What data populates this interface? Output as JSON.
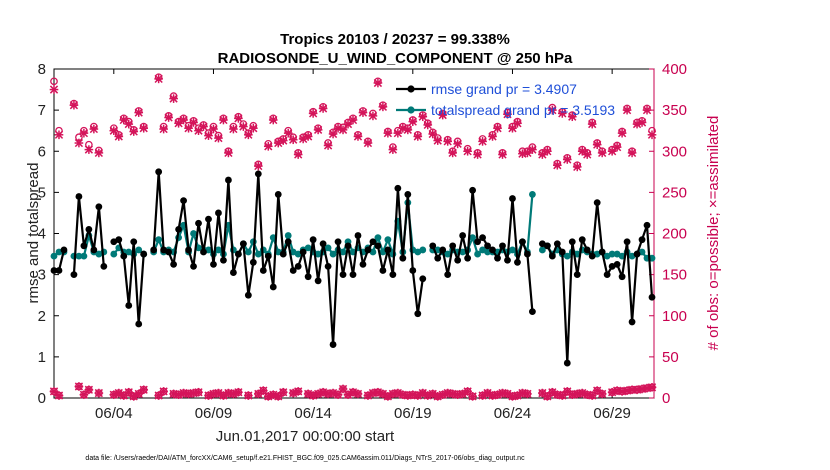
{
  "title_line1": "Tropics 20103 / 20237 = 99.338%",
  "title_line2": "RADIOSONDE_U_WIND_COMPONENT @ 250 hPa",
  "footer": "data file: /Users/raeder/DAI/ATM_forcXX/CAM6_setup/f.e21.FHIST_BGC.f09_025.CAM6assim.011/Diags_NTrS_2017-06/obs_diag_output.nc",
  "colors": {
    "rmse": "#000000",
    "spread": "#007a78",
    "obs": "#d4145a",
    "legend_text": "#1f4fd8"
  },
  "chart_data": {
    "type": "line",
    "xlabel": "Jun.01,2017 00:00:00 start",
    "ylabel": "rmse and totalspread",
    "ylabel_right": "# of obs: o=possible; ×=assimilated",
    "ylim": [
      0,
      8
    ],
    "ylim_right": [
      0,
      400
    ],
    "xlim": [
      1,
      31.1
    ],
    "xticks": [
      4,
      9,
      14,
      19,
      24,
      29
    ],
    "xtick_labels": [
      "06/04",
      "06/09",
      "06/14",
      "06/19",
      "06/24",
      "06/29"
    ],
    "yticks": [
      0,
      1,
      2,
      3,
      4,
      5,
      6,
      7,
      8
    ],
    "yticks_right": [
      0,
      50,
      100,
      150,
      200,
      250,
      300,
      350,
      400
    ],
    "legend": [
      "rmse grand pr = 3.4907",
      "totalspread grand pr = 3.5193"
    ],
    "x": [
      1.0,
      1.25,
      1.5,
      1.75,
      2.0,
      2.25,
      2.5,
      2.75,
      3.0,
      3.25,
      3.5,
      3.75,
      4.0,
      4.25,
      4.5,
      4.75,
      5.0,
      5.25,
      5.5,
      5.75,
      6.0,
      6.25,
      6.5,
      6.75,
      7.0,
      7.25,
      7.5,
      7.75,
      8.0,
      8.25,
      8.5,
      8.75,
      9.0,
      9.25,
      9.5,
      9.75,
      10.0,
      10.25,
      10.5,
      10.75,
      11.0,
      11.25,
      11.5,
      11.75,
      12.0,
      12.25,
      12.5,
      12.75,
      13.0,
      13.25,
      13.5,
      13.75,
      14.0,
      14.25,
      14.5,
      14.75,
      15.0,
      15.25,
      15.5,
      15.75,
      16.0,
      16.25,
      16.5,
      16.75,
      17.0,
      17.25,
      17.5,
      17.75,
      18.0,
      18.25,
      18.5,
      18.75,
      19.0,
      19.25,
      19.5,
      19.75,
      20.0,
      20.25,
      20.5,
      20.75,
      21.0,
      21.25,
      21.5,
      21.75,
      22.0,
      22.25,
      22.5,
      22.75,
      23.0,
      23.25,
      23.5,
      23.75,
      24.0,
      24.25,
      24.5,
      24.75,
      25.0,
      25.25,
      25.5,
      25.75,
      26.0,
      26.25,
      26.5,
      26.75,
      27.0,
      27.25,
      27.5,
      27.75,
      28.0,
      28.25,
      28.5,
      28.75,
      29.0,
      29.25,
      29.5,
      29.75,
      30.0,
      30.25,
      30.5,
      30.75,
      31.0
    ],
    "series": [
      {
        "name": "rmse",
        "axis": "left",
        "values": [
          3.1,
          3.1,
          3.6,
          null,
          3.0,
          4.9,
          3.7,
          4.1,
          3.6,
          4.65,
          3.2,
          null,
          3.8,
          3.85,
          3.45,
          2.25,
          3.8,
          1.8,
          3.5,
          null,
          3.6,
          5.5,
          3.6,
          3.55,
          3.25,
          4.1,
          4.8,
          3.6,
          3.2,
          4.25,
          3.55,
          4.35,
          3.25,
          4.5,
          3.35,
          5.3,
          3.05,
          3.5,
          3.75,
          2.5,
          3.3,
          5.45,
          3.1,
          3.45,
          2.7,
          4.95,
          3.5,
          3.8,
          3.1,
          3.2,
          3.55,
          2.95,
          3.85,
          2.85,
          3.75,
          3.2,
          1.3,
          3.8,
          3.0,
          3.7,
          3.0,
          3.95,
          3.25,
          3.6,
          3.8,
          3.7,
          3.1,
          3.6,
          3.0,
          5.1,
          3.4,
          4.95,
          3.1,
          2.05,
          2.9,
          null,
          3.7,
          3.4,
          3.6,
          3.0,
          3.7,
          3.35,
          3.95,
          3.4,
          5.05,
          3.8,
          3.9,
          3.7,
          3.6,
          3.4,
          3.7,
          3.35,
          4.85,
          3.3,
          3.8,
          3.5,
          2.1,
          null,
          3.75,
          3.7,
          3.45,
          3.75,
          3.55,
          0.85,
          3.8,
          3.0,
          3.85,
          3.6,
          3.45,
          4.75,
          3.55,
          3.0,
          3.2,
          3.25,
          2.95,
          3.8,
          1.85,
          3.5,
          3.85,
          4.2,
          2.45
        ]
      },
      {
        "name": "totalspread",
        "axis": "left",
        "values": [
          3.45,
          3.55,
          3.55,
          null,
          3.45,
          3.45,
          3.45,
          3.95,
          3.55,
          3.5,
          3.55,
          null,
          3.5,
          3.65,
          3.55,
          3.55,
          3.5,
          3.6,
          3.5,
          null,
          3.55,
          3.85,
          3.55,
          3.6,
          3.55,
          3.9,
          4.2,
          3.55,
          4.0,
          3.65,
          3.6,
          3.6,
          3.5,
          3.6,
          3.5,
          4.2,
          3.6,
          3.5,
          3.75,
          3.55,
          3.8,
          3.5,
          3.6,
          3.5,
          3.9,
          3.55,
          3.55,
          3.95,
          3.55,
          3.5,
          3.6,
          3.65,
          3.55,
          3.5,
          3.55,
          3.65,
          3.5,
          3.6,
          3.55,
          3.8,
          3.55,
          3.65,
          3.55,
          3.65,
          3.55,
          3.9,
          3.55,
          3.85,
          3.5,
          4.3,
          3.55,
          4.75,
          3.6,
          3.55,
          3.6,
          null,
          3.6,
          3.6,
          3.55,
          3.5,
          3.6,
          3.55,
          3.55,
          3.6,
          3.9,
          3.5,
          3.6,
          3.55,
          3.55,
          3.55,
          3.6,
          3.55,
          3.6,
          3.5,
          3.8,
          3.55,
          4.95,
          null,
          3.6,
          3.7,
          3.5,
          3.6,
          3.5,
          3.45,
          3.55,
          3.5,
          3.6,
          3.55,
          3.5,
          3.5,
          3.55,
          3.45,
          3.5,
          3.5,
          3.45,
          3.55,
          3.45,
          3.5,
          3.55,
          3.4,
          3.4
        ]
      },
      {
        "name": "obs_possible",
        "axis": "right",
        "marker": "o",
        "values": [
          385,
          325,
          null,
          null,
          358,
          317,
          325,
          308,
          330,
          301,
          null,
          null,
          328,
          320,
          340,
          336,
          326,
          349,
          330,
          null,
          null,
          390,
          330,
          343,
          367,
          336,
          340,
          331,
          337,
          328,
          332,
          322,
          330,
          319,
          340,
          300,
          330,
          342,
          333,
          322,
          331,
          284,
          null,
          309,
          340,
          312,
          315,
          325,
          317,
          298,
          317,
          320,
          348,
          328,
          354,
          310,
          323,
          330,
          329,
          335,
          340,
          320,
          349,
          312,
          346,
          385,
          356,
          324,
          305,
          325,
          330,
          328,
          338,
          320,
          344,
          334,
          323,
          316,
          346,
          314,
          300,
          312,
          null,
          303,
          null,
          298,
          315,
          null,
          320,
          330,
          298,
          347,
          330,
          336,
          300,
          300,
          305,
          null,
          298,
          302,
          353,
          285,
          348,
          292,
          344,
          283,
          302,
          298,
          335,
          310,
          300,
          null,
          302,
          307,
          324,
          352,
          300,
          335,
          337,
          352,
          325
        ]
      },
      {
        "name": "obs_assimilated",
        "axis": "right",
        "marker": "x",
        "values": [
          375,
          320,
          null,
          null,
          356,
          310,
          322,
          302,
          327,
          298,
          null,
          null,
          325,
          318,
          338,
          333,
          324,
          347,
          328,
          null,
          null,
          388,
          327,
          341,
          364,
          334,
          338,
          328,
          335,
          325,
          330,
          319,
          327,
          316,
          338,
          298,
          327,
          340,
          330,
          320,
          328,
          282,
          null,
          306,
          338,
          310,
          313,
          322,
          314,
          296,
          315,
          318,
          346,
          326,
          352,
          307,
          321,
          328,
          326,
          333,
          338,
          318,
          347,
          310,
          343,
          383,
          354,
          322,
          302,
          322,
          328,
          326,
          336,
          318,
          342,
          332,
          321,
          313,
          344,
          312,
          298,
          309,
          null,
          300,
          null,
          296,
          312,
          null,
          318,
          328,
          296,
          345,
          328,
          334,
          297,
          298,
          302,
          null,
          296,
          300,
          350,
          283,
          346,
          290,
          342,
          281,
          300,
          296,
          333,
          308,
          298,
          null,
          300,
          305,
          322,
          350,
          298,
          333,
          335,
          350,
          320
        ]
      },
      {
        "name": "obs_low_possible",
        "axis": "right",
        "marker": "o",
        "values": [
          8,
          3,
          null,
          null,
          null,
          14,
          4,
          10,
          null,
          6,
          null,
          null,
          4,
          6,
          3,
          7,
          2,
          5,
          10,
          null,
          null,
          3,
          8,
          null,
          5,
          4,
          6,
          5,
          6,
          7,
          null,
          3,
          5,
          6,
          3,
          6,
          5,
          7,
          null,
          3,
          null,
          5,
          9,
          2,
          4,
          2,
          7,
          null,
          6,
          8,
          null,
          5,
          3,
          5,
          7,
          5,
          6,
          4,
          11,
          4,
          7,
          5,
          null,
          3,
          6,
          7,
          5,
          2,
          5,
          6,
          4,
          3,
          4,
          3,
          6,
          3,
          5,
          2,
          4,
          6,
          5,
          4,
          5,
          8,
          2,
          null,
          3,
          6,
          3,
          4,
          6,
          5,
          2,
          3,
          6,
          5,
          null,
          null,
          6,
          2,
          7,
          4,
          3,
          8,
          4,
          5,
          6,
          4,
          3,
          9,
          5,
          null,
          7,
          9,
          8,
          9,
          10,
          10,
          11,
          12,
          13
        ]
      },
      {
        "name": "obs_low_assimilated",
        "axis": "right",
        "marker": "x",
        "values": [
          8,
          3,
          null,
          null,
          null,
          14,
          4,
          10,
          null,
          6,
          null,
          null,
          4,
          6,
          3,
          7,
          2,
          5,
          10,
          null,
          null,
          3,
          8,
          null,
          5,
          4,
          6,
          5,
          6,
          7,
          null,
          3,
          5,
          6,
          3,
          6,
          5,
          7,
          null,
          3,
          null,
          5,
          9,
          2,
          4,
          2,
          7,
          null,
          6,
          8,
          null,
          5,
          3,
          5,
          7,
          5,
          6,
          4,
          11,
          4,
          7,
          5,
          null,
          3,
          6,
          7,
          5,
          2,
          5,
          6,
          4,
          3,
          4,
          3,
          6,
          3,
          5,
          2,
          4,
          6,
          5,
          4,
          5,
          8,
          2,
          null,
          3,
          6,
          3,
          4,
          6,
          5,
          2,
          3,
          6,
          5,
          null,
          null,
          6,
          2,
          7,
          4,
          3,
          8,
          4,
          5,
          6,
          4,
          3,
          9,
          5,
          null,
          7,
          9,
          8,
          9,
          10,
          10,
          11,
          12,
          13
        ]
      }
    ]
  }
}
